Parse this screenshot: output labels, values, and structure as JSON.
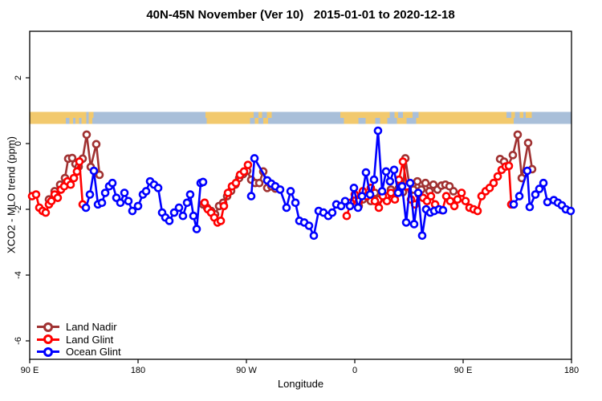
{
  "title": "40N-45N November (Ver 10)   2015-01-01 to 2020-12-18",
  "chart_data": {
    "type": "line",
    "title": "40N-45N November (Ver 10)   2015-01-01 to 2020-12-18",
    "xlabel": "Longitude",
    "ylabel": "XCO2 - MLO trend (ppm)",
    "x_unit_note": "degrees east of 90E along wrapped longitude axis (0 to 450)",
    "x_range": [
      0,
      450
    ],
    "ylim": [
      -6.6,
      3.4
    ],
    "x_ticks": [
      {
        "offset": 0,
        "label": "90 E"
      },
      {
        "offset": 90,
        "label": "180"
      },
      {
        "offset": 180,
        "label": "90 W"
      },
      {
        "offset": 270,
        "label": "0"
      },
      {
        "offset": 360,
        "label": "90 E"
      },
      {
        "offset": 450,
        "label": "180"
      }
    ],
    "y_ticks": [
      {
        "value": 2,
        "label": "2"
      },
      {
        "value": 0,
        "label": "0"
      },
      {
        "value": -2,
        "label": "-2"
      },
      {
        "value": -4,
        "label": "-4"
      },
      {
        "value": -6,
        "label": "-6"
      }
    ],
    "grid": false,
    "legend_position": "bottom-left",
    "map_band": {
      "description": "two-row land/ocean strip for the 40N-45N latitude band",
      "value_top": 0.95,
      "value_bottom": 0.6,
      "land_color": "#F2C96D",
      "ocean_color": "#A9BFD9",
      "rows": [
        {
          "name": "north-45N",
          "land": [
            [
              0,
              47
            ],
            [
              49,
              53
            ],
            [
              146,
              201
            ],
            [
              258,
              410
            ],
            [
              412,
              417
            ]
          ],
          "water_patches": [
            [
              186,
              190
            ],
            [
              193,
              197
            ],
            [
              299,
              303
            ],
            [
              306,
              310
            ],
            [
              318,
              323
            ],
            [
              396,
              400
            ],
            [
              403,
              407
            ]
          ]
        },
        {
          "name": "south-40N",
          "land": [
            [
              0,
              30
            ],
            [
              33,
              36
            ],
            [
              38,
              41
            ],
            [
              43,
              47
            ],
            [
              49,
              52
            ],
            [
              147,
              198
            ],
            [
              261,
              273
            ],
            [
              279,
              297
            ],
            [
              305,
              313
            ],
            [
              321,
              402
            ]
          ],
          "water_patches": [
            [
              183,
              187
            ],
            [
              190,
              194
            ],
            [
              287,
              291
            ]
          ]
        }
      ]
    },
    "series": [
      {
        "name": "Land Nadir",
        "color": "#A03232",
        "segments": [
          [
            [
              16,
              -1.7
            ],
            [
              20.7,
              -1.45
            ],
            [
              25.3,
              -1.25
            ],
            [
              29.3,
              -1.05
            ],
            [
              32,
              -0.46
            ],
            [
              35.3,
              -0.44
            ],
            [
              38,
              -0.62
            ],
            [
              40.7,
              -0.7
            ],
            [
              44,
              -0.46
            ],
            [
              47.3,
              0.27
            ],
            [
              50.7,
              -0.71
            ],
            [
              55.3,
              -0.02
            ],
            [
              58,
              -0.95
            ]
          ],
          [
            [
              144,
              -1.85
            ],
            [
              147.3,
              -1.95
            ],
            [
              150.7,
              -2.05
            ],
            [
              154,
              -2.15
            ],
            [
              157.3,
              -1.9
            ],
            [
              160.7,
              -1.8
            ],
            [
              164,
              -1.6
            ],
            [
              167.3,
              -1.44
            ],
            [
              170.7,
              -1.25
            ],
            [
              174,
              -1.05
            ],
            [
              177.3,
              -0.93
            ],
            [
              180.7,
              -0.83
            ],
            [
              184,
              -1.1
            ],
            [
              187.3,
              -1.2
            ],
            [
              190.7,
              -1.2
            ],
            [
              194,
              -0.85
            ],
            [
              197.3,
              -1.35
            ],
            [
              200.7,
              -1.3
            ],
            [
              204,
              -1.37
            ]
          ],
          [
            [
              273.3,
              -1.9
            ],
            [
              276.7,
              -1.7
            ],
            [
              280,
              -1.6
            ],
            [
              283.3,
              -1.75
            ],
            [
              286.7,
              -1.5
            ],
            [
              290,
              -1.7
            ],
            [
              293.3,
              -1.55
            ],
            [
              296.7,
              -1.6
            ],
            [
              300,
              -1.4
            ],
            [
              303.3,
              -1.55
            ],
            [
              306.7,
              -1.35
            ],
            [
              310,
              -1.48
            ],
            [
              312,
              -0.45
            ],
            [
              315.3,
              -1.25
            ],
            [
              318.7,
              -1.4
            ],
            [
              322,
              -1.15
            ],
            [
              325.3,
              -1.4
            ],
            [
              328.7,
              -1.2
            ],
            [
              332,
              -1.45
            ],
            [
              335.3,
              -1.25
            ],
            [
              338.7,
              -1.4
            ],
            [
              342,
              -1.28
            ],
            [
              345.3,
              -1.25
            ],
            [
              348.7,
              -1.3
            ],
            [
              352,
              -1.45
            ]
          ],
          [
            [
              390.7,
              -0.47
            ],
            [
              394,
              -0.55
            ],
            [
              397.3,
              -0.68
            ],
            [
              401.3,
              -0.35
            ],
            [
              405.3,
              0.27
            ],
            [
              408.7,
              -1.05
            ],
            [
              414,
              0.02
            ],
            [
              417.3,
              -0.78
            ]
          ]
        ]
      },
      {
        "name": "Land Glint",
        "color": "#FF0000",
        "segments": [
          [
            [
              2,
              -1.6
            ],
            [
              5.3,
              -1.55
            ],
            [
              8,
              -1.95
            ],
            [
              10.7,
              -2.05
            ],
            [
              13.3,
              -2.1
            ],
            [
              16,
              -1.85
            ],
            [
              18,
              -1.75
            ],
            [
              20.7,
              -1.55
            ],
            [
              23.3,
              -1.65
            ],
            [
              26,
              -1.4
            ],
            [
              28.7,
              -1.3
            ],
            [
              31.3,
              -1.15
            ],
            [
              34,
              -1.25
            ],
            [
              36.7,
              -1.05
            ],
            [
              39.3,
              -0.85
            ],
            [
              41.3,
              -0.55
            ],
            [
              44,
              -1.85
            ]
          ],
          [
            [
              145.3,
              -1.8
            ],
            [
              148,
              -2.0
            ],
            [
              150.7,
              -2.1
            ],
            [
              153.3,
              -2.25
            ],
            [
              156,
              -2.4
            ],
            [
              158.7,
              -2.35
            ],
            [
              161.3,
              -1.9
            ],
            [
              164.7,
              -1.5
            ],
            [
              168,
              -1.3
            ],
            [
              171.3,
              -1.2
            ],
            [
              174.7,
              -0.95
            ],
            [
              178,
              -0.85
            ],
            [
              181.3,
              -0.65
            ]
          ],
          [
            [
              263.3,
              -2.2
            ],
            [
              266.7,
              -1.8
            ],
            [
              270,
              -1.55
            ],
            [
              273.3,
              -1.75
            ],
            [
              276.7,
              -1.45
            ],
            [
              280,
              -1.6
            ],
            [
              283.3,
              -1.35
            ],
            [
              286.7,
              -1.75
            ],
            [
              290,
              -1.95
            ],
            [
              293.3,
              -1.6
            ],
            [
              296.7,
              -1.75
            ],
            [
              300,
              -1.5
            ],
            [
              303.3,
              -1.7
            ],
            [
              306.7,
              -1.1
            ],
            [
              310,
              -0.55
            ],
            [
              313.3,
              -1.3
            ],
            [
              316.7,
              -1.7
            ],
            [
              320,
              -1.85
            ],
            [
              323.3,
              -1.55
            ],
            [
              326.7,
              -1.65
            ],
            [
              330,
              -1.75
            ],
            [
              333.3,
              -1.6
            ],
            [
              336.7,
              -1.85
            ],
            [
              340,
              -2.0
            ],
            [
              342.7,
              -2.03
            ],
            [
              346,
              -1.6
            ],
            [
              349.3,
              -1.75
            ],
            [
              352.7,
              -1.9
            ],
            [
              355.3,
              -1.7
            ],
            [
              358.7,
              -1.5
            ],
            [
              362,
              -1.75
            ],
            [
              365.3,
              -1.95
            ],
            [
              368.7,
              -2.0
            ],
            [
              372,
              -2.05
            ],
            [
              375.3,
              -1.6
            ],
            [
              378.7,
              -1.45
            ],
            [
              382,
              -1.35
            ],
            [
              385.3,
              -1.2
            ],
            [
              388.7,
              -1.0
            ],
            [
              392,
              -0.8
            ],
            [
              395.3,
              -0.7
            ],
            [
              398,
              -0.68
            ],
            [
              400,
              -1.85
            ]
          ]
        ]
      },
      {
        "name": "Ocean Glint",
        "color": "#0000FF",
        "segments": [
          [
            [
              46.7,
              -1.95
            ],
            [
              50,
              -1.55
            ],
            [
              53.3,
              -0.83
            ],
            [
              56.7,
              -1.85
            ],
            [
              60,
              -1.8
            ],
            [
              62.7,
              -1.5
            ],
            [
              66,
              -1.3
            ],
            [
              68.7,
              -1.2
            ],
            [
              72,
              -1.65
            ],
            [
              75.3,
              -1.8
            ],
            [
              78.7,
              -1.5
            ],
            [
              82,
              -1.75
            ],
            [
              85.3,
              -2.05
            ],
            [
              90,
              -1.9
            ],
            [
              94,
              -1.55
            ],
            [
              96.7,
              -1.45
            ],
            [
              100,
              -1.15
            ],
            [
              103.3,
              -1.25
            ],
            [
              106.7,
              -1.35
            ],
            [
              110,
              -2.1
            ],
            [
              112.7,
              -2.25
            ],
            [
              116,
              -2.35
            ],
            [
              120,
              -2.1
            ],
            [
              124,
              -1.95
            ],
            [
              127.3,
              -2.2
            ],
            [
              130.7,
              -1.8
            ],
            [
              133.3,
              -1.55
            ],
            [
              136,
              -2.2
            ],
            [
              138.7,
              -2.6
            ],
            [
              142,
              -1.2
            ],
            [
              144,
              -1.17
            ]
          ],
          [
            [
              184,
              -1.6
            ],
            [
              186.7,
              -0.45
            ],
            [
              197.3,
              -1.12
            ],
            [
              200.7,
              -1.22
            ],
            [
              204,
              -1.3
            ],
            [
              208,
              -1.4
            ],
            [
              213.3,
              -1.95
            ],
            [
              216.7,
              -1.45
            ],
            [
              220.7,
              -1.8
            ],
            [
              224,
              -2.35
            ],
            [
              228,
              -2.4
            ],
            [
              232,
              -2.5
            ],
            [
              236,
              -2.8
            ],
            [
              240,
              -2.05
            ],
            [
              244,
              -2.1
            ],
            [
              248,
              -2.2
            ],
            [
              251.3,
              -2.1
            ],
            [
              254.7,
              -1.85
            ],
            [
              258.7,
              -1.9
            ],
            [
              262,
              -1.75
            ],
            [
              266,
              -1.9
            ],
            [
              269.3,
              -1.35
            ],
            [
              272.7,
              -1.95
            ],
            [
              276,
              -1.6
            ],
            [
              279.3,
              -0.88
            ],
            [
              282.7,
              -1.55
            ],
            [
              286,
              -1.1
            ],
            [
              289.3,
              0.39
            ],
            [
              292.7,
              -1.45
            ],
            [
              296,
              -0.85
            ],
            [
              299.3,
              -1.15
            ],
            [
              302.7,
              -0.8
            ],
            [
              306,
              -1.5
            ],
            [
              309.3,
              -1.3
            ],
            [
              312.7,
              -2.4
            ],
            [
              316,
              -1.2
            ],
            [
              319.3,
              -2.45
            ],
            [
              322.7,
              -1.5
            ],
            [
              326,
              -2.8
            ],
            [
              329.3,
              -2.0
            ],
            [
              332.7,
              -2.1
            ],
            [
              336,
              -2.05
            ],
            [
              340,
              -2.0
            ],
            [
              343.3,
              -2.03
            ]
          ],
          [
            [
              402,
              -1.85
            ],
            [
              406.7,
              -1.6
            ],
            [
              413.3,
              -0.83
            ],
            [
              415.3,
              -1.93
            ],
            [
              420,
              -1.55
            ],
            [
              423.3,
              -1.38
            ],
            [
              426.7,
              -1.2
            ],
            [
              430,
              -1.78
            ],
            [
              435.3,
              -1.72
            ],
            [
              438.7,
              -1.8
            ],
            [
              442,
              -1.88
            ],
            [
              445.3,
              -2.0
            ],
            [
              449.3,
              -2.05
            ]
          ]
        ]
      }
    ]
  }
}
